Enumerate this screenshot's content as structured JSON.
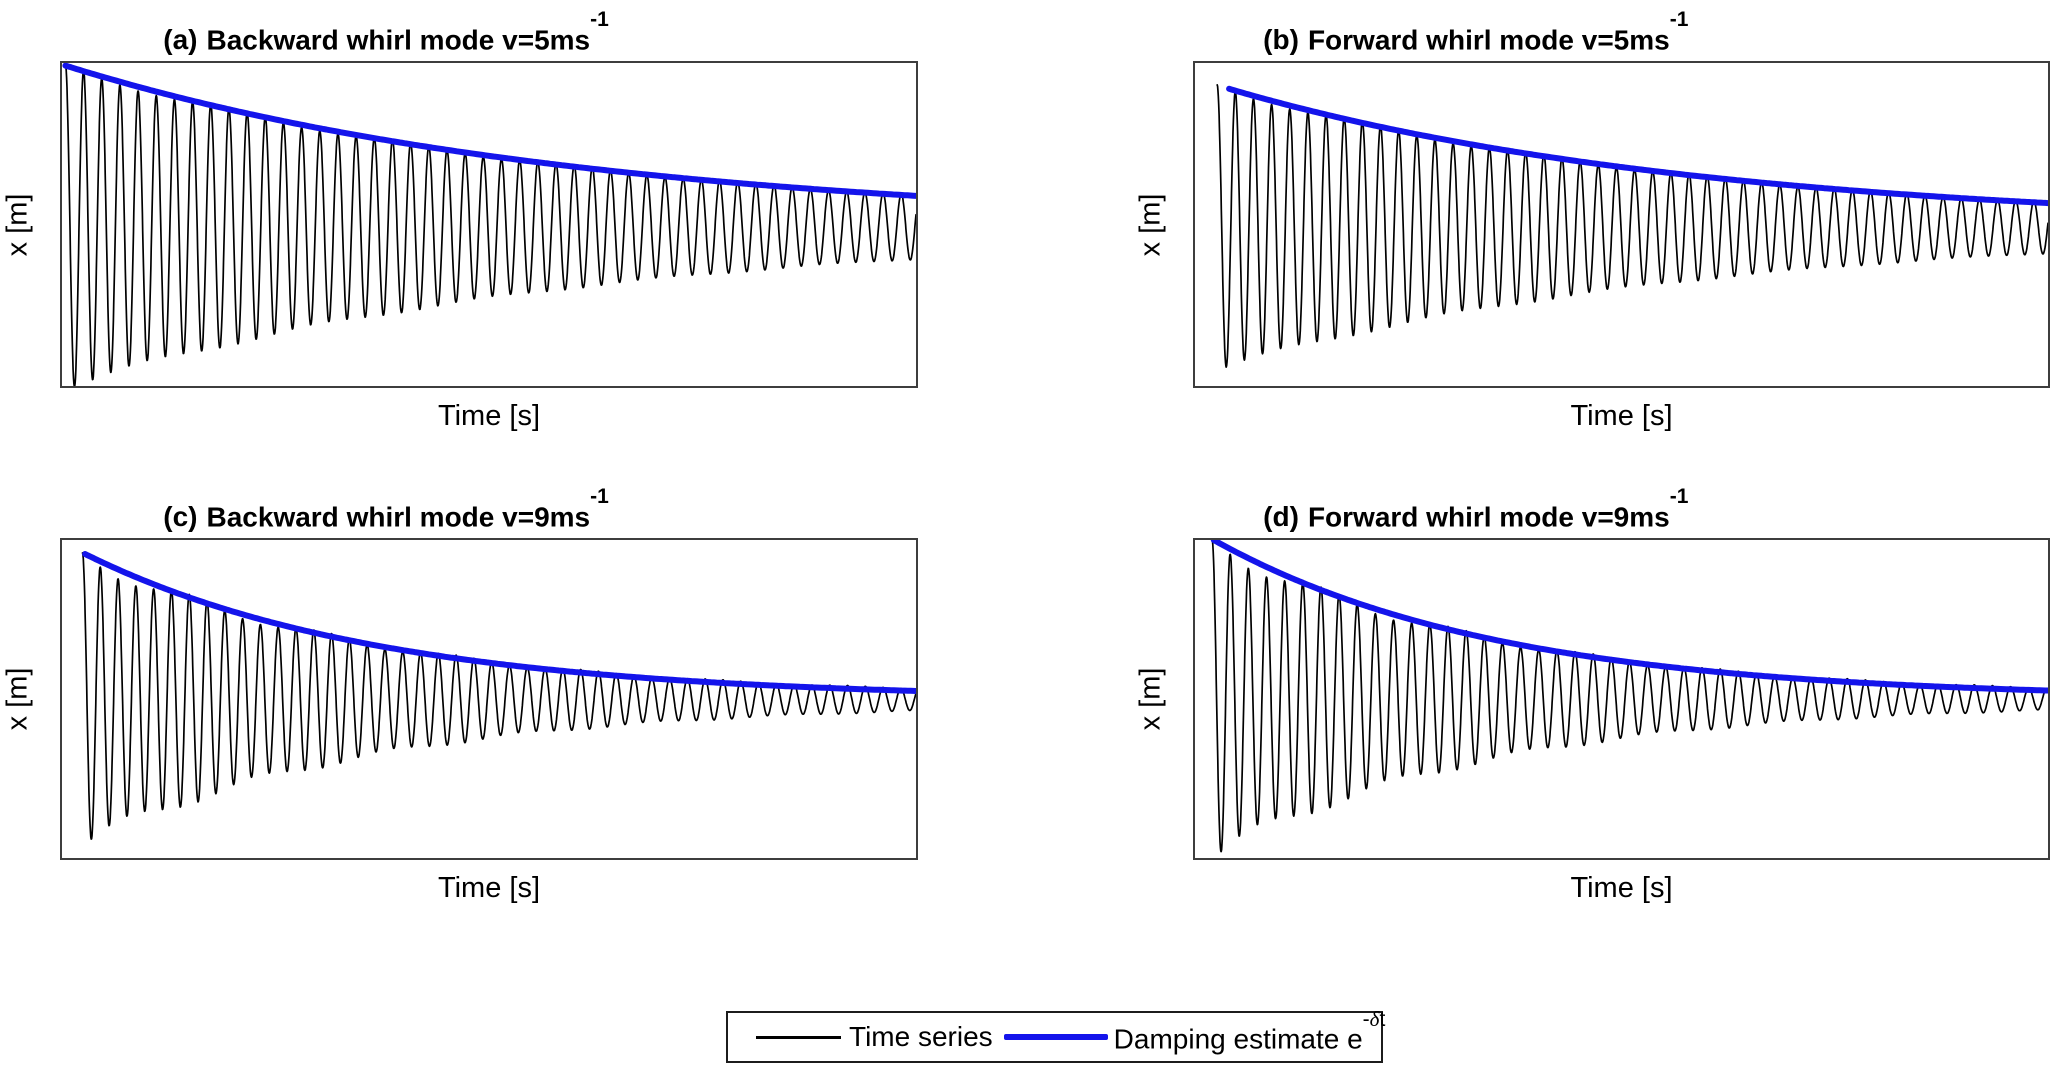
{
  "figure": {
    "background": "#ffffff",
    "axis_box_color": "#3d3d3d",
    "text_color": "#000000",
    "accent_blue": "#1414EB",
    "series_black": "#000000"
  },
  "legend": {
    "position": "bottom-center",
    "border_color": "#1c1c1c",
    "items": [
      {
        "label": "Time series",
        "color": "#000000",
        "line_style": "thin"
      },
      {
        "label": "Damping estimate e",
        "sup_minus": "-",
        "sup_delta": "δ",
        "sup_t": "t",
        "color": "#1414EB",
        "line_style": "thick"
      }
    ]
  },
  "chart_data": [
    {
      "type": "line",
      "panel": "a",
      "title_prefix": "(a)",
      "title": "Backward whirl mode v=5ms",
      "title_superscript": "-1",
      "xlabel": "Time [s]",
      "ylabel": "x [m]",
      "x_ticks": [],
      "y_ticks": [],
      "grid": false,
      "series": [
        {
          "name": "Time series",
          "color": "#000000",
          "width": 1.7
        },
        {
          "name": "Damping estimate e^(-δt)",
          "color": "#1414EB",
          "width": 6
        }
      ],
      "model": {
        "description": "x(t)=mid-A0*exp(-delta*(t-env_start))*cos(2pi*cycles*(t-sig_start)); fractions of plot box, y down; envelope=mid-A0*exp(-delta*(t-env_start))",
        "mid_frac": 0.508,
        "amp0_frac": 0.5,
        "delta": 1.65,
        "cycles": 47,
        "sig_start_frac": 0.004,
        "env_start_frac": 0.004,
        "amp_floor_frac": 0.004,
        "beat_depth": 0.04,
        "beat_cycles": 5
      }
    },
    {
      "type": "line",
      "panel": "b",
      "title_prefix": "(b)",
      "title": "Forward whirl mode v=5ms",
      "title_superscript": "-1",
      "xlabel": "Time [s]",
      "ylabel": "x [m]",
      "x_ticks": [],
      "y_ticks": [],
      "grid": false,
      "series": [
        {
          "name": "Time series",
          "color": "#000000",
          "width": 1.7
        },
        {
          "name": "Damping estimate e^(-δt)",
          "color": "#1414EB",
          "width": 6
        }
      ],
      "model": {
        "mid_frac": 0.51,
        "amp0_frac": 0.43,
        "delta": 1.8,
        "cycles": 47,
        "sig_start_frac": 0.026,
        "env_start_frac": 0.04,
        "amp_floor_frac": 0.004,
        "beat_depth": 0.04,
        "beat_cycles": 5
      }
    },
    {
      "type": "line",
      "panel": "c",
      "title_prefix": "(c)",
      "title": "Backward whirl mode v=9ms",
      "title_superscript": "-1",
      "xlabel": "Time [s]",
      "ylabel": "x [m]",
      "x_ticks": [],
      "y_ticks": [],
      "grid": false,
      "series": [
        {
          "name": "Time series",
          "color": "#000000",
          "width": 1.7
        },
        {
          "name": "Damping estimate e^(-δt)",
          "color": "#1414EB",
          "width": 6
        }
      ],
      "model": {
        "mid_frac": 0.502,
        "amp0_frac": 0.458,
        "delta": 2.9,
        "cycles": 48,
        "sig_start_frac": 0.024,
        "env_start_frac": 0.027,
        "amp_floor_frac": 0.01,
        "beat_depth": 0.1,
        "beat_cycles": 6.5
      }
    },
    {
      "type": "line",
      "panel": "d",
      "title_prefix": "(d)",
      "title": "Forward whirl mode v=9ms",
      "title_superscript": "-1",
      "xlabel": "Time [s]",
      "ylabel": "x [m]",
      "x_ticks": [],
      "y_ticks": [],
      "grid": false,
      "series": [
        {
          "name": "Time series",
          "color": "#000000",
          "width": 1.7
        },
        {
          "name": "Damping estimate e^(-δt)",
          "color": "#1414EB",
          "width": 6
        }
      ],
      "model": {
        "mid_frac": 0.5,
        "amp0_frac": 0.5,
        "delta": 3.0,
        "cycles": 47,
        "sig_start_frac": 0.02,
        "env_start_frac": 0.022,
        "amp_floor_frac": 0.01,
        "beat_depth": 0.1,
        "beat_cycles": 6.5
      }
    }
  ]
}
